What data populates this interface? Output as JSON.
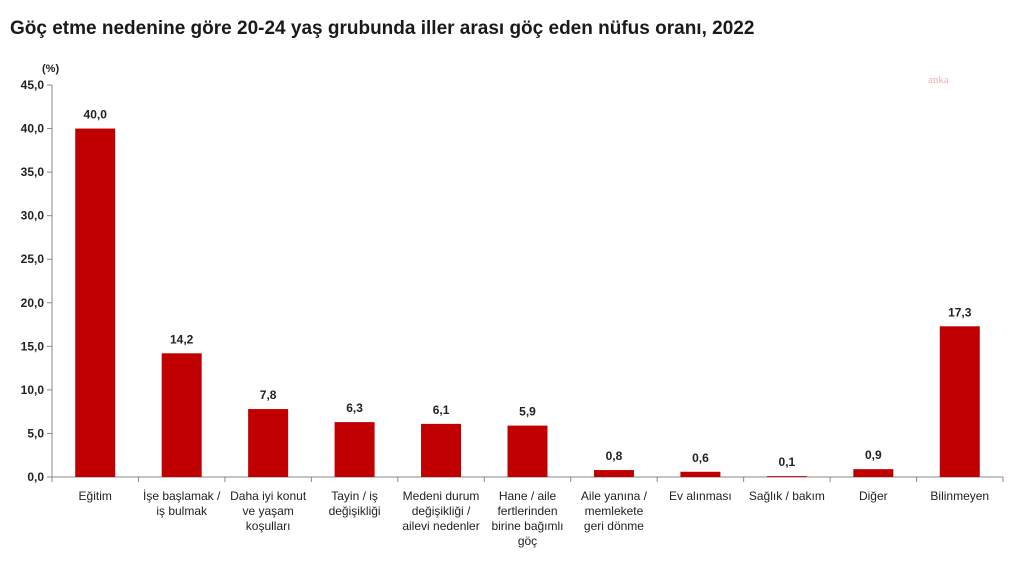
{
  "chart_data": {
    "type": "bar",
    "title": "Göç etme nedenine göre 20-24 yaş grubunda iller arası göç eden nüfus oranı, 2022",
    "unit": "(%)",
    "ylim": [
      0,
      45
    ],
    "yticks": [
      "0,0",
      "5,0",
      "10,0",
      "15,0",
      "20,0",
      "25,0",
      "30,0",
      "35,0",
      "40,0",
      "45,0"
    ],
    "categories": [
      [
        "Eğitim"
      ],
      [
        "İşe başlamak /",
        "iş bulmak"
      ],
      [
        "Daha iyi konut",
        "ve yaşam",
        "koşulları"
      ],
      [
        "Tayin / iş",
        "değişikliği"
      ],
      [
        "Medeni durum",
        "değişikliği /",
        "ailevi nedenler"
      ],
      [
        "Hane / aile",
        "fertlerinden",
        "birine bağımlı",
        "göç"
      ],
      [
        "Aile yanına /",
        "memlekete",
        "geri dönme"
      ],
      [
        "Ev alınması"
      ],
      [
        "Sağlık / bakım"
      ],
      [
        "Diğer"
      ],
      [
        "Bilinmeyen"
      ]
    ],
    "values": [
      40.0,
      14.2,
      7.8,
      6.3,
      6.1,
      5.9,
      0.8,
      0.6,
      0.1,
      0.9,
      17.3
    ],
    "value_labels": [
      "40,0",
      "14,2",
      "7,8",
      "6,3",
      "6,1",
      "5,9",
      "0,8",
      "0,6",
      "0,1",
      "0,9",
      "17,3"
    ],
    "bar_color": "#c00000",
    "grid": false,
    "legend": "none"
  },
  "watermark": "anka",
  "watermark_color": "#f2b0b0"
}
